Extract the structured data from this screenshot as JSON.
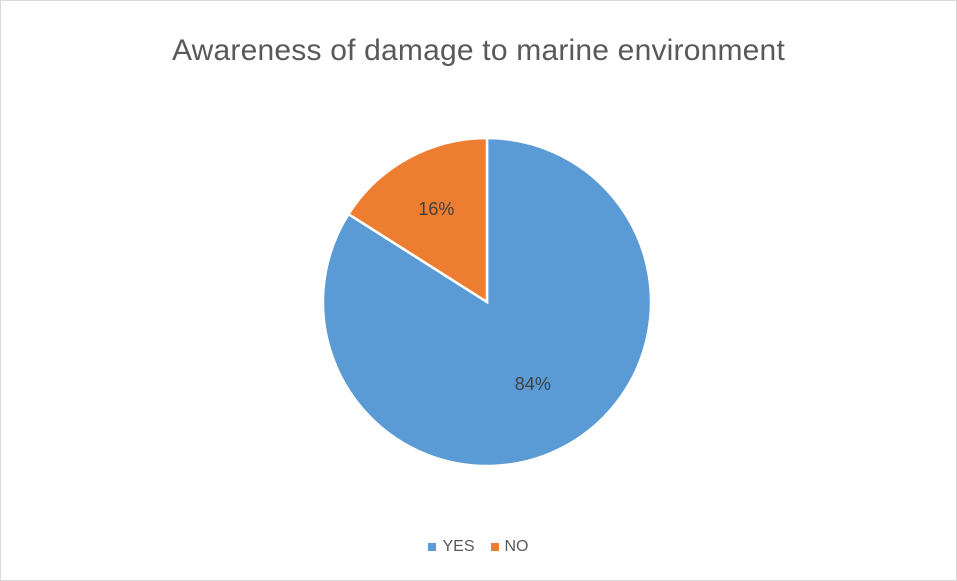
{
  "chart_data": {
    "type": "pie",
    "title": "Awareness of damage to marine environment",
    "categories": [
      "YES",
      "NO"
    ],
    "values": [
      84,
      16
    ],
    "labels": [
      "84%",
      "16%"
    ],
    "colors": [
      "#5b9bd5",
      "#ed7d31"
    ],
    "start_angle": "12 o'clock, clockwise",
    "legend": "bottom"
  }
}
